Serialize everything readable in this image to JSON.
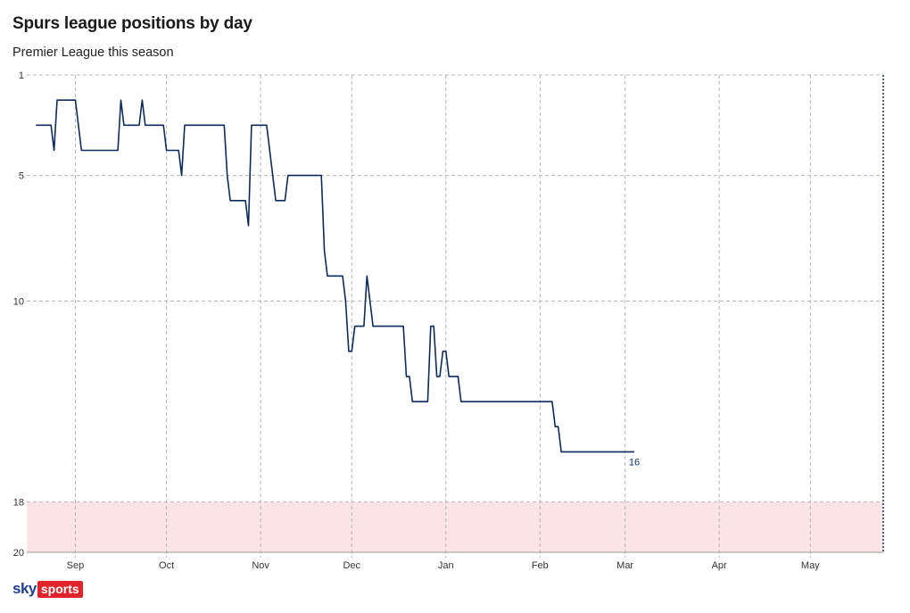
{
  "title": "Spurs league positions by day",
  "subtitle": "Premier League this season",
  "logo": {
    "sky": "sky",
    "sports": "sports"
  },
  "colors": {
    "line": "#0d2a5e",
    "relegation_zone": "#fde4e6",
    "grid": "#b5b5b5",
    "end_marker": "#0d2a5e"
  },
  "chart_data": {
    "type": "line",
    "title": "Spurs league positions by day",
    "subtitle": "Premier League this season",
    "xlabel": "",
    "ylabel": "",
    "y_inverted": true,
    "ylim": [
      1,
      20
    ],
    "yticks": [
      1,
      5,
      10,
      18,
      20
    ],
    "xlim": [
      "2024-08-16",
      "2025-05-25"
    ],
    "xticks": [
      {
        "label": "Sep",
        "date": "2024-09-01"
      },
      {
        "label": "Oct",
        "date": "2024-10-01"
      },
      {
        "label": "Nov",
        "date": "2024-11-01"
      },
      {
        "label": "Dec",
        "date": "2024-12-01"
      },
      {
        "label": "Jan",
        "date": "2025-01-01"
      },
      {
        "label": "Feb",
        "date": "2025-02-01"
      },
      {
        "label": "Mar",
        "date": "2025-03-01"
      },
      {
        "label": "Apr",
        "date": "2025-04-01"
      },
      {
        "label": "May",
        "date": "2025-05-01"
      }
    ],
    "grid": true,
    "shaded_band": {
      "from": 18,
      "to": 20,
      "meaning": "relegation zone"
    },
    "season_end_date": "2025-05-25",
    "end_label": "16",
    "series": [
      {
        "points": [
          [
            "2024-08-19",
            3
          ],
          [
            "2024-08-24",
            3
          ],
          [
            "2024-08-25",
            4
          ],
          [
            "2024-08-26",
            2
          ],
          [
            "2024-09-01",
            2
          ],
          [
            "2024-09-03",
            4
          ],
          [
            "2024-09-15",
            4
          ],
          [
            "2024-09-16",
            2
          ],
          [
            "2024-09-17",
            3
          ],
          [
            "2024-09-22",
            3
          ],
          [
            "2024-09-23",
            2
          ],
          [
            "2024-09-24",
            3
          ],
          [
            "2024-09-30",
            3
          ],
          [
            "2024-10-01",
            4
          ],
          [
            "2024-10-05",
            4
          ],
          [
            "2024-10-06",
            5
          ],
          [
            "2024-10-07",
            3
          ],
          [
            "2024-10-20",
            3
          ],
          [
            "2024-10-21",
            5
          ],
          [
            "2024-10-22",
            6
          ],
          [
            "2024-10-27",
            6
          ],
          [
            "2024-10-28",
            7
          ],
          [
            "2024-10-29",
            3
          ],
          [
            "2024-11-03",
            3
          ],
          [
            "2024-11-04",
            4
          ],
          [
            "2024-11-06",
            6
          ],
          [
            "2024-11-09",
            6
          ],
          [
            "2024-11-10",
            5
          ],
          [
            "2024-11-21",
            5
          ],
          [
            "2024-11-22",
            8
          ],
          [
            "2024-11-23",
            9
          ],
          [
            "2024-11-28",
            9
          ],
          [
            "2024-11-29",
            10
          ],
          [
            "2024-11-30",
            12
          ],
          [
            "2024-12-01",
            12
          ],
          [
            "2024-12-02",
            11
          ],
          [
            "2024-12-05",
            11
          ],
          [
            "2024-12-06",
            9
          ],
          [
            "2024-12-08",
            11
          ],
          [
            "2024-12-18",
            11
          ],
          [
            "2024-12-19",
            13
          ],
          [
            "2024-12-20",
            13
          ],
          [
            "2024-12-21",
            14
          ],
          [
            "2024-12-26",
            14
          ],
          [
            "2024-12-27",
            11
          ],
          [
            "2024-12-28",
            11
          ],
          [
            "2024-12-29",
            13
          ],
          [
            "2024-12-30",
            13
          ],
          [
            "2024-12-31",
            12
          ],
          [
            "2025-01-01",
            12
          ],
          [
            "2025-01-02",
            13
          ],
          [
            "2025-01-05",
            13
          ],
          [
            "2025-01-06",
            14
          ],
          [
            "2025-02-05",
            14
          ],
          [
            "2025-02-06",
            15
          ],
          [
            "2025-02-07",
            15
          ],
          [
            "2025-02-08",
            16
          ],
          [
            "2025-03-04",
            16
          ]
        ]
      }
    ]
  }
}
